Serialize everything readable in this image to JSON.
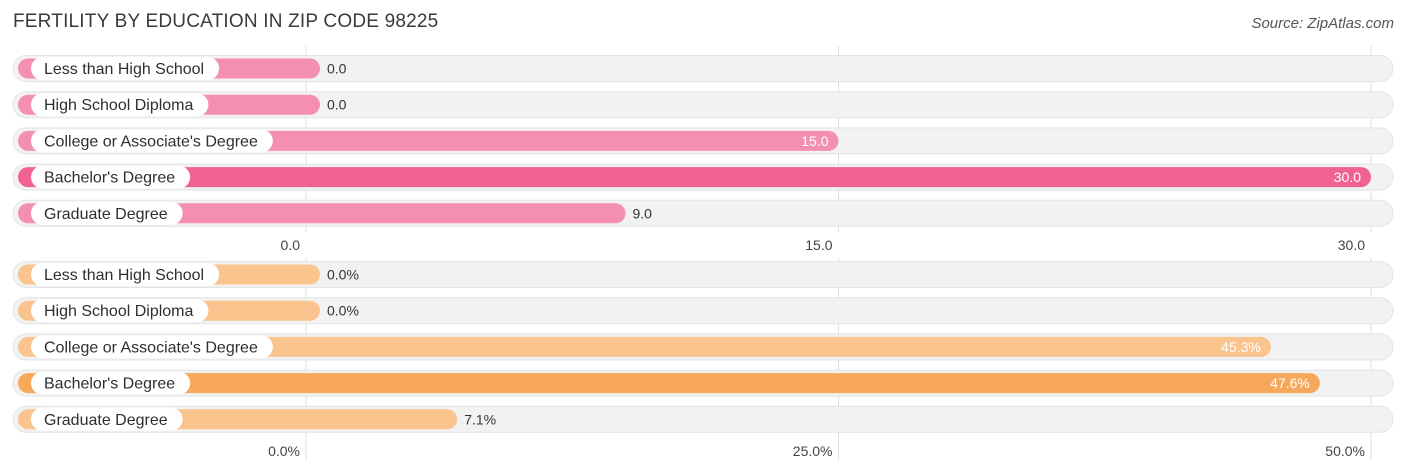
{
  "header": {
    "title": "FERTILITY BY EDUCATION IN ZIP CODE 98225",
    "source": "Source: ZipAtlas.com"
  },
  "chart_data": [
    {
      "type": "bar",
      "orientation": "horizontal",
      "categories": [
        "Less than High School",
        "High School Diploma",
        "College or Associate's Degree",
        "Bachelor's Degree",
        "Graduate Degree"
      ],
      "values": [
        0.0,
        0.0,
        15.0,
        30.0,
        9.0
      ],
      "value_labels": [
        "0.0",
        "0.0",
        "15.0",
        "30.0",
        "9.0"
      ],
      "xlim": [
        0,
        30
      ],
      "x_ticks": [
        0,
        15,
        30
      ],
      "x_tick_labels": [
        "0.0",
        "15.0",
        "30.0"
      ],
      "color": "#f48fb1",
      "highlight_color": "#f06292",
      "grid": true
    },
    {
      "type": "bar",
      "orientation": "horizontal",
      "categories": [
        "Less than High School",
        "High School Diploma",
        "College or Associate's Degree",
        "Bachelor's Degree",
        "Graduate Degree"
      ],
      "values": [
        0.0,
        0.0,
        45.3,
        47.6,
        7.1
      ],
      "value_labels": [
        "0.0%",
        "0.0%",
        "45.3%",
        "47.6%",
        "7.1%"
      ],
      "xlim": [
        0,
        50
      ],
      "x_ticks": [
        0,
        25,
        50
      ],
      "x_tick_labels": [
        "0.0%",
        "25.0%",
        "50.0%"
      ],
      "color": "#fac48e",
      "highlight_color": "#f7a85a",
      "grid": true
    }
  ]
}
